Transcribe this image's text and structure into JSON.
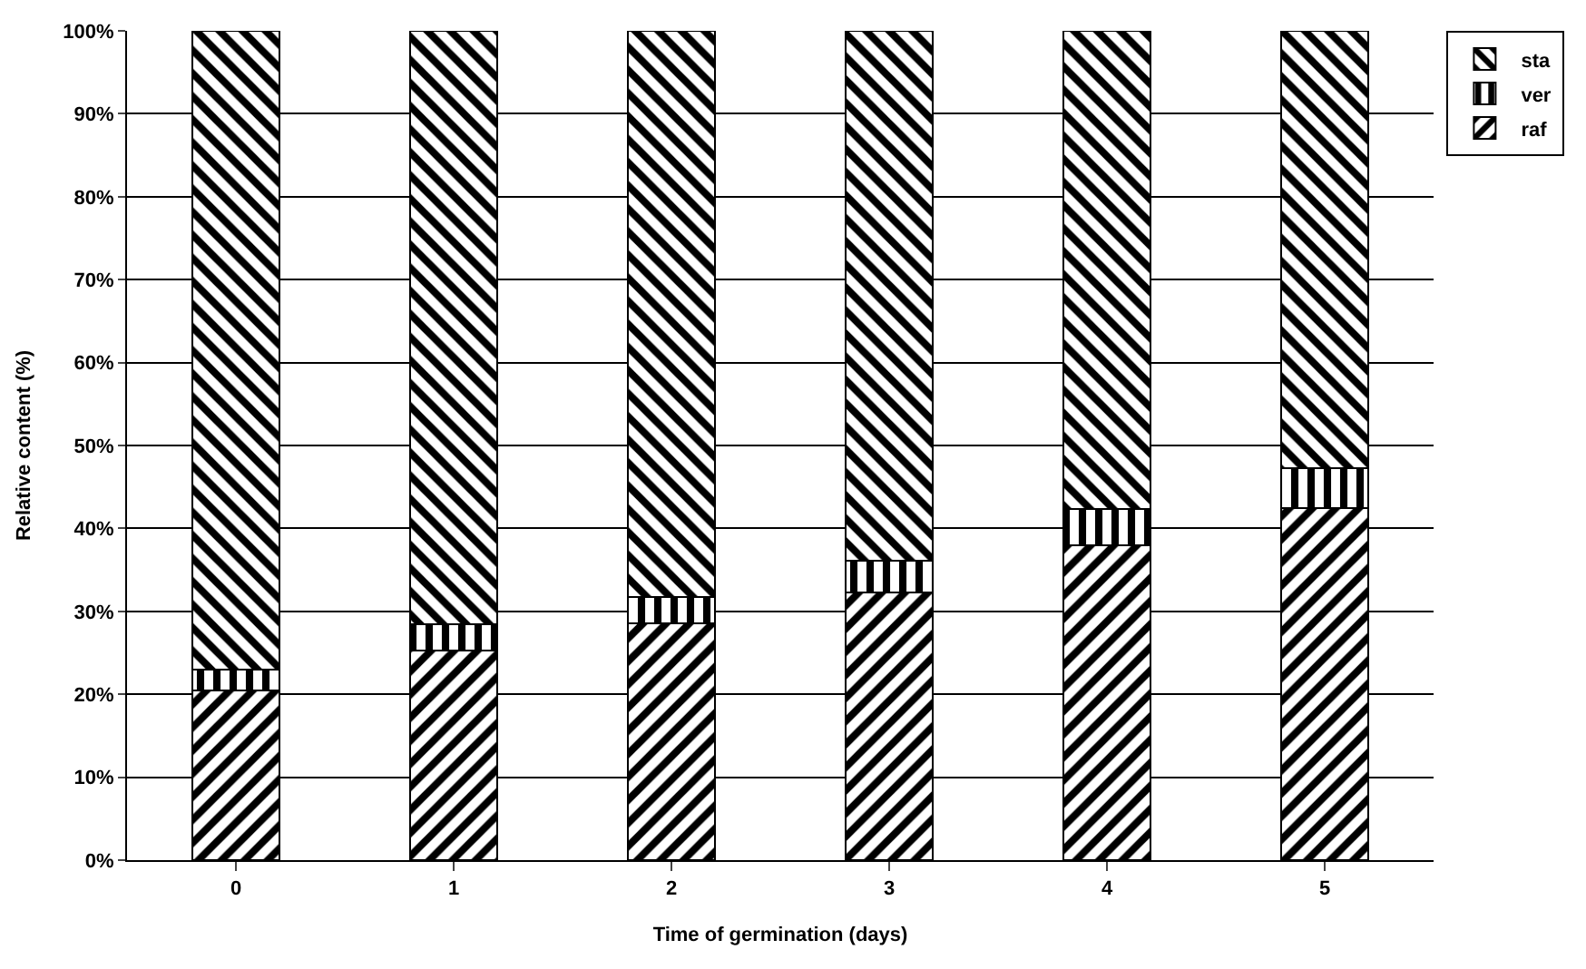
{
  "chart_data": {
    "type": "bar",
    "stacked": true,
    "xlabel": "Time of germination (days)",
    "ylabel": "Relative content (%)",
    "categories": [
      "0",
      "1",
      "2",
      "3",
      "4",
      "5"
    ],
    "series": [
      {
        "name": "raf",
        "color": "#000000",
        "values": [
          20.5,
          25.3,
          28.6,
          32.3,
          38.0,
          42.4
        ]
      },
      {
        "name": "ver",
        "color": "#000000",
        "values": [
          2.5,
          3.1,
          3.1,
          3.8,
          4.3,
          4.9
        ]
      },
      {
        "name": "sta",
        "color": "#000000",
        "values": [
          77.0,
          71.6,
          68.3,
          63.9,
          57.7,
          52.7
        ]
      }
    ],
    "ylim": [
      0,
      100
    ],
    "yticks": [
      {
        "value": 0,
        "label": "0%"
      },
      {
        "value": 10,
        "label": "10%"
      },
      {
        "value": 20,
        "label": "20%"
      },
      {
        "value": 30,
        "label": "30%"
      },
      {
        "value": 40,
        "label": "40%"
      },
      {
        "value": 50,
        "label": "50%"
      },
      {
        "value": 60,
        "label": "60%"
      },
      {
        "value": 70,
        "label": "70%"
      },
      {
        "value": 80,
        "label": "80%"
      },
      {
        "value": 90,
        "label": "90%"
      },
      {
        "value": 100,
        "label": "100%"
      }
    ],
    "grid": "y",
    "legend": "top right"
  }
}
